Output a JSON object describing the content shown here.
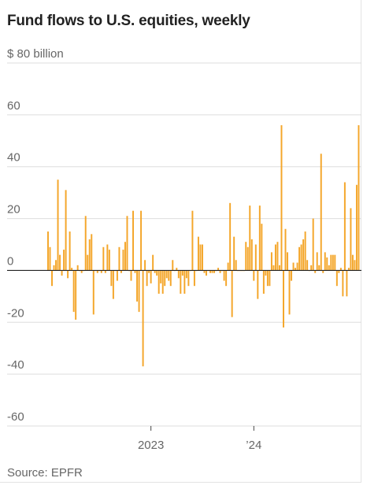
{
  "title": "Fund flows to U.S. equities, weekly",
  "source": "Source: EPFR",
  "colors": {
    "bar": "#f4a62a",
    "grid": "#dddddd",
    "zero": "#222222",
    "text": "#666666"
  },
  "chart_data": {
    "type": "bar",
    "title": "Fund flows to U.S. equities, weekly",
    "ylabel": "$ billion",
    "ylim": [
      -60,
      80
    ],
    "yticks": [
      {
        "value": 80,
        "label": "$ 80 billion"
      },
      {
        "value": 60,
        "label": "60"
      },
      {
        "value": 40,
        "label": "40"
      },
      {
        "value": 20,
        "label": "20"
      },
      {
        "value": 0,
        "label": "0"
      },
      {
        "value": -20,
        "label": "-20"
      },
      {
        "value": -40,
        "label": "-40"
      },
      {
        "value": -60,
        "label": "-60"
      }
    ],
    "xticks": [
      {
        "index": 52,
        "label": "2023"
      },
      {
        "index": 104,
        "label": "’24"
      }
    ],
    "grid": true,
    "values": [
      15,
      9,
      -6,
      2,
      4,
      35,
      6,
      -2,
      8,
      31,
      -3,
      15,
      1,
      -16,
      -19,
      2,
      0,
      -1,
      0,
      21,
      6,
      12,
      14,
      -17,
      0,
      -1,
      0,
      -1,
      9,
      -1,
      10,
      8,
      -6,
      -11,
      0,
      -4,
      9,
      -1,
      8,
      11,
      21,
      0,
      -4,
      23,
      -1,
      -12,
      -16,
      23,
      -37,
      4,
      -6,
      -1,
      -5,
      6,
      -1,
      -2,
      -9,
      -5,
      -9,
      -6,
      -3,
      -4,
      -6,
      4,
      0,
      1,
      -3,
      -9,
      -2,
      -9,
      -3,
      -6,
      0,
      23,
      -6,
      0,
      13,
      10,
      10,
      -1,
      -2,
      0,
      -1,
      -1,
      -1,
      0,
      1,
      -1,
      0,
      -4,
      -6,
      3,
      26,
      -18,
      13,
      4,
      0,
      0,
      0,
      0,
      11,
      9,
      25,
      12,
      -4,
      10,
      -11,
      25,
      18,
      -9,
      -2,
      -6,
      -6,
      7,
      2,
      10,
      11,
      2,
      56,
      -22,
      16,
      7,
      -17,
      -4,
      3,
      1,
      3,
      9,
      10,
      12,
      15,
      4,
      0,
      2,
      20,
      -1,
      7,
      2,
      45,
      -1,
      7,
      5,
      2,
      6,
      6,
      6,
      -6,
      -1,
      1,
      -10,
      34,
      -10,
      1,
      24,
      6,
      4,
      33,
      56
    ]
  }
}
